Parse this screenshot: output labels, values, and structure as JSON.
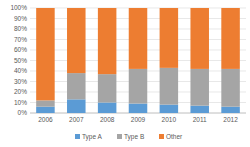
{
  "chart_data": {
    "type": "bar",
    "stacked": true,
    "grid": true,
    "legend": "bottom",
    "categories": [
      "2006",
      "2007",
      "2008",
      "2009",
      "2010",
      "2011",
      "2012"
    ],
    "series": [
      {
        "name": "Type A",
        "color": "#5b9bd5",
        "values": [
          6,
          13,
          10,
          9,
          8,
          7,
          6
        ]
      },
      {
        "name": "Type B",
        "color": "#a5a5a5",
        "values": [
          6,
          25,
          27,
          33,
          35,
          35,
          36
        ]
      },
      {
        "name": "Other",
        "color": "#ed7d31",
        "values": [
          88,
          62,
          63,
          58,
          57,
          58,
          58
        ]
      }
    ],
    "ylim": [
      0,
      100
    ],
    "yticks": [
      {
        "value": 0,
        "label": "0%"
      },
      {
        "value": 10,
        "label": "10%"
      },
      {
        "value": 20,
        "label": "20%"
      },
      {
        "value": 30,
        "label": "30%"
      },
      {
        "value": 40,
        "label": "40%"
      },
      {
        "value": 50,
        "label": "50%"
      },
      {
        "value": 60,
        "label": "60%"
      },
      {
        "value": 70,
        "label": "70%"
      },
      {
        "value": 80,
        "label": "80%"
      },
      {
        "value": 90,
        "label": "90%"
      },
      {
        "value": 100,
        "label": "100%"
      }
    ]
  }
}
